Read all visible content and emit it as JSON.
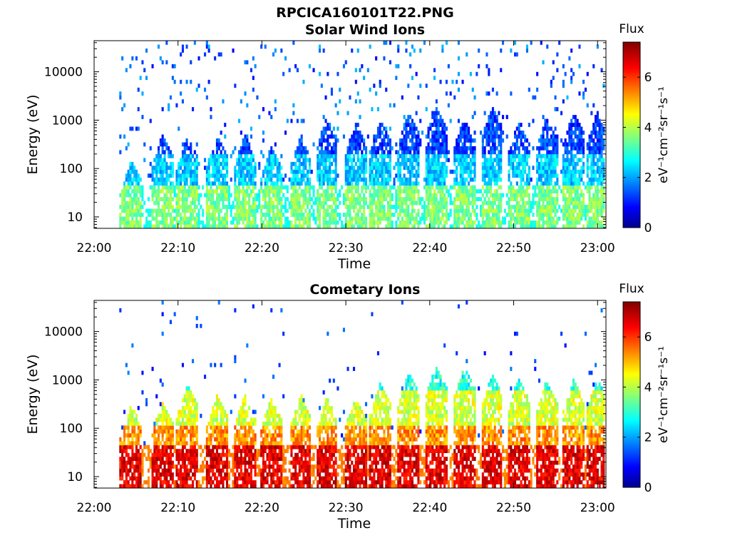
{
  "figure": {
    "main_title": "RPCICA160101T22.PNG",
    "colorbar": {
      "title": "Flux",
      "label": "eV⁻¹cm⁻²sr⁻¹s⁻¹",
      "ticks": [
        "0",
        "2",
        "4",
        "6"
      ],
      "range": [
        0,
        7.4
      ],
      "colormap": "jet",
      "colors": [
        "#00008f",
        "#0000ff",
        "#00ffff",
        "#ffff00",
        "#ff0000",
        "#800000"
      ]
    }
  },
  "chart_data": [
    {
      "type": "heatmap",
      "title": "Solar Wind Ions",
      "xlabel": "Time",
      "ylabel": "Energy (eV)",
      "x_ticks": [
        "22:00",
        "22:10",
        "22:20",
        "22:30",
        "22:40",
        "22:50",
        "23:00"
      ],
      "y_ticks": [
        "10",
        "100",
        "1000",
        "10000"
      ],
      "y_scale": "log",
      "xlim": [
        "22:00",
        "23:01"
      ],
      "ylim": [
        5.8,
        44000
      ],
      "data_start": "22:03",
      "sweep_peak_times": [
        "22:04.3",
        "22:08",
        "22:11",
        "22:14.5",
        "22:17.8",
        "22:21",
        "22:24.5",
        "22:27.6",
        "22:31",
        "22:34",
        "22:37.4",
        "22:40.6",
        "22:44",
        "22:47.3",
        "22:50.5",
        "22:53.8",
        "22:57",
        "22:59.8"
      ],
      "sweep_peak_energy_eV": [
        150,
        500,
        500,
        500,
        500,
        300,
        500,
        1200,
        900,
        1000,
        1500,
        2000,
        1200,
        2000,
        1000,
        1200,
        1500,
        1500
      ],
      "flux_by_energy_band": [
        {
          "band_eV": "6-45",
          "flux": 3.6
        },
        {
          "band_eV": "45-200",
          "flux": 2.3
        },
        {
          "band_eV": "200-2500",
          "flux": 1.3
        },
        {
          "band_eV": "2500-40000",
          "flux": 1.0
        }
      ]
    },
    {
      "type": "heatmap",
      "title": "Cometary Ions",
      "xlabel": "Time",
      "ylabel": "Energy (eV)",
      "x_ticks": [
        "22:00",
        "22:10",
        "22:20",
        "22:30",
        "22:40",
        "22:50",
        "23:00"
      ],
      "y_ticks": [
        "10",
        "100",
        "1000",
        "10000"
      ],
      "y_scale": "log",
      "xlim": [
        "22:00",
        "23:01"
      ],
      "ylim": [
        5.8,
        44000
      ],
      "data_start": "22:03",
      "sweep_peak_times": [
        "22:04.3",
        "22:08",
        "22:11",
        "22:14.5",
        "22:17.8",
        "22:21",
        "22:24.5",
        "22:27.6",
        "22:31",
        "22:34",
        "22:37.4",
        "22:40.6",
        "22:44",
        "22:47.3",
        "22:50.5",
        "22:53.8",
        "22:57",
        "22:59.8"
      ],
      "sweep_peak_energy_eV": [
        300,
        350,
        800,
        500,
        500,
        450,
        500,
        500,
        450,
        900,
        1500,
        2000,
        2000,
        1300,
        1200,
        1000,
        1000,
        1100
      ],
      "flux_by_energy_band": [
        {
          "band_eV": "6-45",
          "flux": 6.2
        },
        {
          "band_eV": "45-120",
          "flux": 5.3
        },
        {
          "band_eV": "120-600",
          "flux": 4.2
        },
        {
          "band_eV": "600-2500",
          "flux": 2.9
        },
        {
          "band_eV": "2500-15000",
          "flux": 1.2
        }
      ]
    }
  ]
}
